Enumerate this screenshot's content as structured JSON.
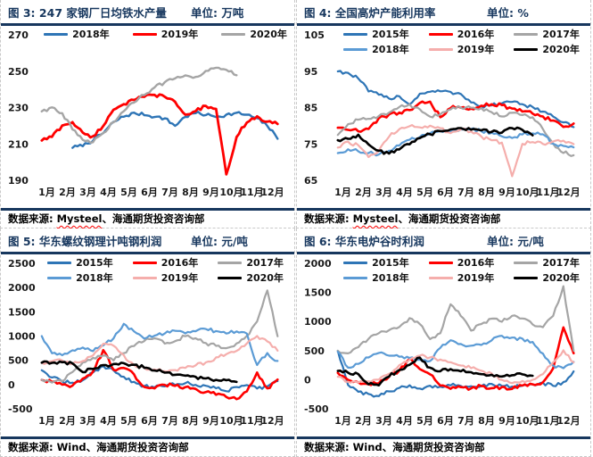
{
  "theme": {
    "navy": "#17375E",
    "dash_border": "#c8c8c8",
    "red_squiggle": "#ff0000"
  },
  "chart_data": [
    {
      "type": "line",
      "fig_label": "图 3:",
      "title": "247 家钢厂日均铁水产量",
      "unit": "单位: 万吨",
      "source_label": "数据来源: ",
      "source_vendor": "Mysteel",
      "source_rest": "、海通期货投资咨询部",
      "vendor_squiggle": true,
      "legend_position": "top",
      "grid": false,
      "xlabel": "",
      "ylabel": "万吨",
      "x_labels": [
        "1月",
        "2月",
        "3月",
        "4月",
        "5月",
        "6月",
        "7月",
        "8月",
        "9月",
        "10月",
        "11月",
        "12月"
      ],
      "ylim": [
        190,
        270
      ],
      "yticks": [
        270,
        250,
        230,
        210,
        190
      ],
      "series": [
        {
          "name": "2018年",
          "color": "#2E75B6",
          "width": 2.4,
          "values": [
            null,
            null,
            null,
            208,
            209,
            212,
            216,
            222,
            225,
            227,
            226,
            225,
            224,
            220,
            225,
            227,
            226,
            225,
            226,
            227,
            226,
            224,
            220,
            213
          ]
        },
        {
          "name": "2019年",
          "color": "#FF0000",
          "width": 2.8,
          "values": [
            212,
            214,
            220,
            222,
            216,
            214,
            220,
            229,
            232,
            234,
            236,
            237,
            236,
            233,
            226,
            228,
            231,
            229,
            193,
            214,
            222,
            225,
            222,
            221
          ]
        },
        {
          "name": "2020年",
          "color": "#A5A5A5",
          "width": 2.4,
          "values": [
            228,
            230,
            227,
            218,
            212,
            211,
            216,
            222,
            228,
            233,
            237,
            241,
            244,
            246,
            248,
            247,
            250,
            252,
            251,
            248,
            null,
            null,
            null,
            null
          ]
        }
      ]
    },
    {
      "type": "line",
      "fig_label": "图 4:",
      "title": "全国高炉产能利用率",
      "unit": "单位: %",
      "source_label": "数据来源: ",
      "source_vendor": "Mysteel",
      "source_rest": "、海通期货投资咨询部",
      "vendor_squiggle": true,
      "legend_position": "top",
      "grid": false,
      "xlabel": "",
      "ylabel": "%",
      "x_labels": [
        "1月",
        "2月",
        "3月",
        "4月",
        "5月",
        "6月",
        "7月",
        "8月",
        "9月",
        "10月",
        "11月",
        "12月"
      ],
      "ylim": [
        65,
        105
      ],
      "yticks": [
        105,
        95,
        85,
        75,
        65
      ],
      "series": [
        {
          "name": "2015年",
          "color": "#2E75B6",
          "width": 2.2,
          "values": [
            95,
            94.5,
            93,
            89.5,
            88.5,
            87.5,
            88.2,
            85.8,
            88.8,
            89.3,
            89.5,
            89.2,
            88.8,
            86.5,
            85.2,
            85.6,
            86.2,
            86.5,
            85.8,
            85.2,
            84,
            82.5,
            81,
            79.5
          ]
        },
        {
          "name": "2016年",
          "color": "#FF0000",
          "width": 2.6,
          "values": [
            79.5,
            79,
            78.6,
            79.2,
            82,
            83,
            83.6,
            84.2,
            86.2,
            86.5,
            82.4,
            85,
            85,
            84.6,
            85.6,
            86,
            85.6,
            84.6,
            84,
            83.4,
            82.4,
            81.4,
            79.6,
            80.6
          ]
        },
        {
          "name": "2017年",
          "color": "#A5A5A5",
          "width": 2.2,
          "values": [
            77.5,
            80.5,
            81.6,
            82,
            82.6,
            83.6,
            85,
            85.8,
            84.4,
            82.6,
            83.2,
            84.6,
            85,
            85,
            84.8,
            83.6,
            82.6,
            83.6,
            83,
            82.4,
            79,
            75,
            72.6,
            72
          ]
        },
        {
          "name": "2018年",
          "color": "#5B9BD5",
          "width": 2.2,
          "values": [
            72.5,
            73.5,
            73,
            72.6,
            72,
            73,
            74.6,
            76,
            77,
            78,
            78.6,
            78.4,
            79,
            79,
            78.6,
            78,
            77,
            76.6,
            77.6,
            78,
            77.6,
            75,
            74.4,
            74
          ]
        },
        {
          "name": "2019年",
          "color": "#F5AEAC",
          "width": 2.2,
          "values": [
            74,
            75.5,
            74.5,
            71.5,
            73,
            77,
            79,
            80,
            79.6,
            80,
            79.4,
            78,
            79,
            78.4,
            77,
            76,
            75.4,
            66,
            75,
            75.6,
            75,
            75.6,
            76,
            75
          ]
        },
        {
          "name": "2020年",
          "color": "#000000",
          "width": 2.6,
          "values": [
            76,
            76.5,
            77.5,
            75,
            73,
            72.5,
            73.6,
            75,
            76.6,
            77.6,
            78.6,
            79,
            79.4,
            79,
            78.6,
            78.4,
            78,
            79.4,
            78.8,
            77.5,
            null,
            null,
            null,
            null
          ]
        }
      ]
    },
    {
      "type": "line",
      "fig_label": "图 5:",
      "title": "华东螺纹钢理计吨钢利润",
      "unit": "单位: 元/吨",
      "source_label": "数据来源: ",
      "source_vendor": "Wind",
      "source_rest": "、海通期货投资咨询部",
      "vendor_squiggle": false,
      "legend_position": "top",
      "grid": false,
      "xlabel": "",
      "ylabel": "元/吨",
      "x_labels": [
        "1月",
        "2月",
        "3月",
        "4月",
        "5月",
        "6月",
        "7月",
        "8月",
        "9月",
        "10月",
        "11月",
        "12月"
      ],
      "ylim": [
        -500,
        2500
      ],
      "yticks": [
        2500,
        2000,
        1500,
        1000,
        500,
        0,
        -500
      ],
      "series": [
        {
          "name": "2015年",
          "color": "#2E75B6",
          "width": 2.2,
          "values": [
            300,
            150,
            60,
            30,
            90,
            250,
            380,
            300,
            150,
            50,
            -30,
            -60,
            -30,
            0,
            30,
            0,
            -30,
            -80,
            -130,
            -50,
            0,
            -80,
            -30,
            80
          ]
        },
        {
          "name": "2016年",
          "color": "#FF0000",
          "width": 2.6,
          "values": [
            100,
            50,
            0,
            -30,
            120,
            260,
            700,
            310,
            350,
            200,
            -50,
            -80,
            0,
            -30,
            -60,
            -100,
            -150,
            -200,
            -250,
            -300,
            -150,
            250,
            -80,
            100
          ]
        },
        {
          "name": "2017年",
          "color": "#A5A5A5",
          "width": 2.2,
          "values": [
            100,
            30,
            80,
            250,
            450,
            550,
            600,
            500,
            650,
            800,
            900,
            950,
            850,
            900,
            1000,
            950,
            850,
            800,
            750,
            850,
            1000,
            1300,
            1950,
            1000
          ]
        },
        {
          "name": "2018年",
          "color": "#5B9BD5",
          "width": 2.2,
          "values": [
            1000,
            650,
            600,
            700,
            760,
            700,
            800,
            950,
            1250,
            1100,
            950,
            1000,
            1060,
            1100,
            1050,
            1100,
            1150,
            1100,
            1050,
            1100,
            1050,
            400,
            650,
            480
          ]
        },
        {
          "name": "2019年",
          "color": "#F5AEAC",
          "width": 2.2,
          "values": [
            450,
            480,
            500,
            420,
            480,
            600,
            850,
            800,
            600,
            400,
            350,
            300,
            280,
            300,
            350,
            400,
            450,
            550,
            620,
            700,
            850,
            1000,
            900,
            700
          ]
        },
        {
          "name": "2020年",
          "color": "#000000",
          "width": 2.6,
          "values": [
            450,
            440,
            450,
            430,
            250,
            330,
            400,
            420,
            430,
            400,
            350,
            300,
            250,
            210,
            180,
            150,
            130,
            100,
            80,
            60,
            null,
            null,
            null,
            null
          ]
        }
      ]
    },
    {
      "type": "line",
      "fig_label": "图 6:",
      "title": "华东电炉谷时利润",
      "unit": "单位: 元/吨",
      "source_label": "数据来源: ",
      "source_vendor": "Wind",
      "source_rest": "、海通期货投资咨询部",
      "vendor_squiggle": false,
      "legend_position": "top",
      "grid": false,
      "xlabel": "",
      "ylabel": "元/吨",
      "x_labels": [
        "1月",
        "2月",
        "3月",
        "4月",
        "5月",
        "6月",
        "7月",
        "8月",
        "9月",
        "10月",
        "11月",
        "12月"
      ],
      "ylim": [
        -500,
        2000
      ],
      "yticks": [
        2000,
        1500,
        1000,
        500,
        0,
        -500
      ],
      "series": [
        {
          "name": "2015年",
          "color": "#2E75B6",
          "width": 2.2,
          "values": [
            500,
            -100,
            -200,
            -250,
            -280,
            -200,
            -150,
            -100,
            -150,
            -110,
            -120,
            -90,
            -100,
            -120,
            -100,
            -80,
            -100,
            -120,
            -100,
            -80,
            -60,
            -100,
            -50,
            150
          ]
        },
        {
          "name": "2016年",
          "color": "#FF0000",
          "width": 2.6,
          "values": [
            120,
            0,
            -50,
            -80,
            -60,
            60,
            160,
            350,
            180,
            100,
            -100,
            -150,
            -120,
            -150,
            -110,
            -150,
            -130,
            -150,
            -100,
            -80,
            -50,
            200,
            900,
            450
          ]
        },
        {
          "name": "2017年",
          "color": "#A5A5A5",
          "width": 2.2,
          "values": [
            500,
            450,
            560,
            700,
            800,
            850,
            900,
            1050,
            950,
            700,
            800,
            1300,
            1100,
            850,
            950,
            1050,
            1000,
            1100,
            1050,
            950,
            900,
            1100,
            1600,
            500
          ]
        },
        {
          "name": "2018年",
          "color": "#5B9BD5",
          "width": 2.2,
          "values": [
            480,
            200,
            280,
            380,
            460,
            420,
            400,
            380,
            350,
            320,
            550,
            680,
            620,
            580,
            600,
            680,
            750,
            720,
            700,
            650,
            450,
            250,
            200,
            300
          ]
        },
        {
          "name": "2019年",
          "color": "#F5AEAC",
          "width": 2.2,
          "values": [
            50,
            -30,
            -50,
            -30,
            0,
            100,
            250,
            350,
            420,
            380,
            350,
            300,
            250,
            200,
            150,
            100,
            0,
            -50,
            -30,
            0,
            100,
            300,
            500,
            300
          ]
        },
        {
          "name": "2020年",
          "color": "#000000",
          "width": 2.6,
          "values": [
            150,
            120,
            100,
            -80,
            -100,
            60,
            160,
            260,
            380,
            200,
            150,
            180,
            150,
            120,
            100,
            80,
            50,
            80,
            100,
            70,
            null,
            null,
            null,
            null
          ]
        }
      ]
    }
  ]
}
